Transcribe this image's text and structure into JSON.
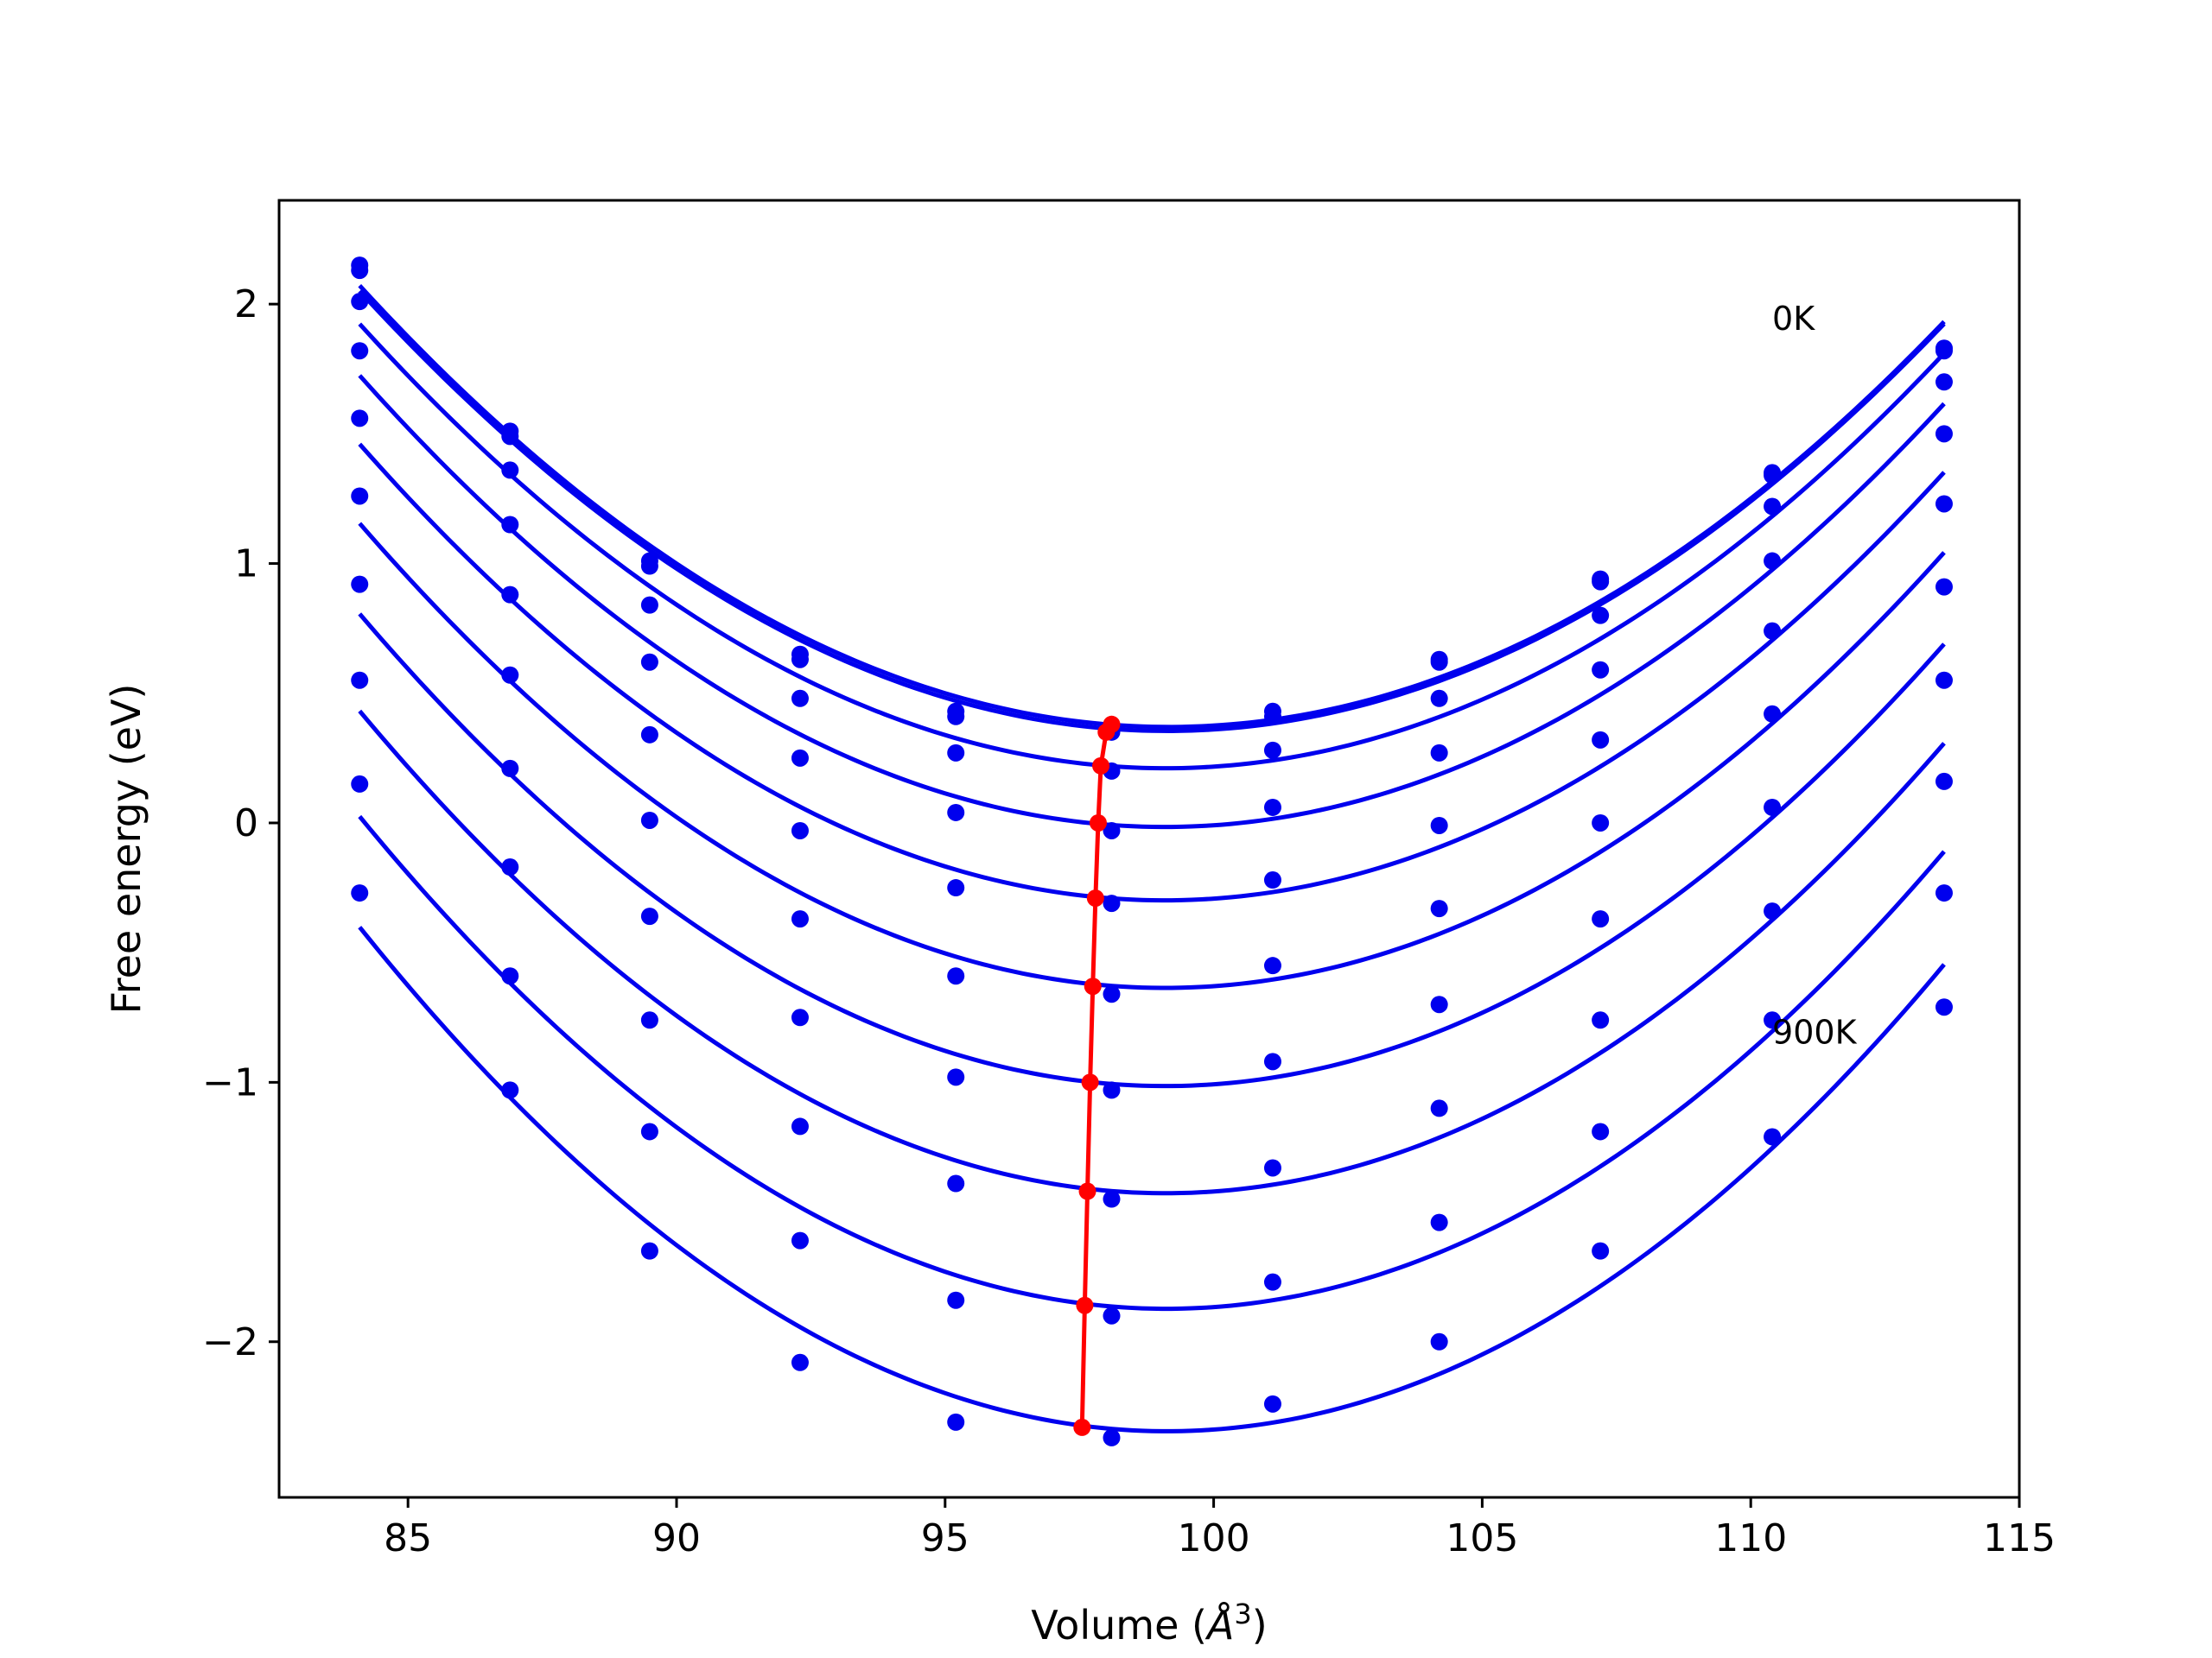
{
  "colors": {
    "curves": "#0000ee",
    "points": "#0000ee",
    "minima": "#ff0000",
    "axes": "#000000",
    "background": "#ffffff"
  },
  "chart_data": {
    "type": "line",
    "xlabel": "Volume (",
    "xlabel_unit": "Å",
    "xlabel_sup": "3",
    "xlabel_close": ")",
    "ylabel": "Free energy (eV)",
    "xlim": [
      82.6,
      115.0
    ],
    "ylim": [
      -2.6,
      2.4
    ],
    "xticks": [
      85,
      90,
      95,
      100,
      105,
      110,
      115
    ],
    "xtick_labels": [
      "85",
      "90",
      "95",
      "100",
      "105",
      "110",
      "115"
    ],
    "yticks": [
      -2,
      -1,
      0,
      1,
      2
    ],
    "ytick_labels": [
      "−2",
      "−1",
      "0",
      "1",
      "2"
    ],
    "grid": false,
    "legend": "none",
    "annotations": [
      {
        "text": "0K",
        "x": 110.4,
        "y": 1.9
      },
      {
        "text": "900K",
        "x": 110.4,
        "y": -0.85
      }
    ],
    "volumes": [
      84.1,
      86.9,
      89.5,
      92.3,
      95.2,
      98.1,
      101.1,
      104.2,
      107.2,
      110.4,
      113.6
    ],
    "series": [
      {
        "temperature_K": 0,
        "points": [
          2.15,
          1.51,
          1.01,
          0.65,
          0.43,
          0.36,
          0.43,
          0.63,
          0.94,
          1.35,
          1.83
        ],
        "fit_min": [
          97.9,
          0.36
        ]
      },
      {
        "temperature_K": 100,
        "points": [
          2.13,
          1.49,
          0.99,
          0.63,
          0.41,
          0.35,
          0.41,
          0.62,
          0.93,
          1.34,
          1.82
        ],
        "fit_min": [
          97.9,
          0.37
        ]
      },
      {
        "temperature_K": 200,
        "points": [
          2.01,
          1.36,
          0.84,
          0.48,
          0.27,
          0.2,
          0.28,
          0.48,
          0.8,
          1.22,
          1.7
        ],
        "fit_min": [
          97.9,
          0.22
        ]
      },
      {
        "temperature_K": 300,
        "points": [
          1.82,
          1.15,
          0.62,
          0.25,
          0.04,
          -0.03,
          0.06,
          0.27,
          0.59,
          1.01,
          1.5
        ],
        "fit_min": [
          97.8,
          0.0
        ]
      },
      {
        "temperature_K": 400,
        "points": [
          1.56,
          0.88,
          0.34,
          -0.03,
          -0.25,
          -0.31,
          -0.22,
          -0.01,
          0.32,
          0.74,
          1.23
        ],
        "fit_min": [
          97.8,
          -0.29
        ]
      },
      {
        "temperature_K": 500,
        "points": [
          1.26,
          0.57,
          0.01,
          -0.37,
          -0.59,
          -0.66,
          -0.55,
          -0.33,
          0.0,
          0.42,
          0.91
        ],
        "fit_min": [
          97.7,
          -0.63
        ]
      },
      {
        "temperature_K": 600,
        "points": [
          0.92,
          0.21,
          -0.36,
          -0.75,
          -0.98,
          -1.03,
          -0.92,
          -0.7,
          -0.37,
          0.06,
          0.55
        ],
        "fit_min": [
          97.7,
          -1.0
        ]
      },
      {
        "temperature_K": 700,
        "points": [
          0.55,
          -0.17,
          -0.76,
          -1.17,
          -1.39,
          -1.45,
          -1.33,
          -1.1,
          -0.76,
          -0.34,
          0.16
        ],
        "fit_min": [
          97.6,
          -1.42
        ]
      },
      {
        "temperature_K": 800,
        "points": [
          0.15,
          -0.59,
          -1.19,
          -1.61,
          -1.84,
          -1.9,
          -1.77,
          -1.54,
          -1.19,
          -0.76,
          -0.27
        ],
        "fit_min": [
          97.6,
          -1.86
        ]
      },
      {
        "temperature_K": 900,
        "points": [
          -0.27,
          -1.03,
          -1.65,
          -2.08,
          -2.31,
          -2.37,
          -2.24,
          -2.0,
          -1.65,
          -1.21,
          -0.71
        ],
        "fit_min": [
          97.5,
          -2.33
        ]
      }
    ],
    "minima_line": [
      [
        98.1,
        0.38
      ],
      [
        98.0,
        0.35
      ],
      [
        97.9,
        0.22
      ],
      [
        97.85,
        0.0
      ],
      [
        97.8,
        -0.29
      ],
      [
        97.75,
        -0.63
      ],
      [
        97.7,
        -1.0
      ],
      [
        97.65,
        -1.42
      ],
      [
        97.6,
        -1.86
      ],
      [
        97.55,
        -2.33
      ]
    ]
  }
}
